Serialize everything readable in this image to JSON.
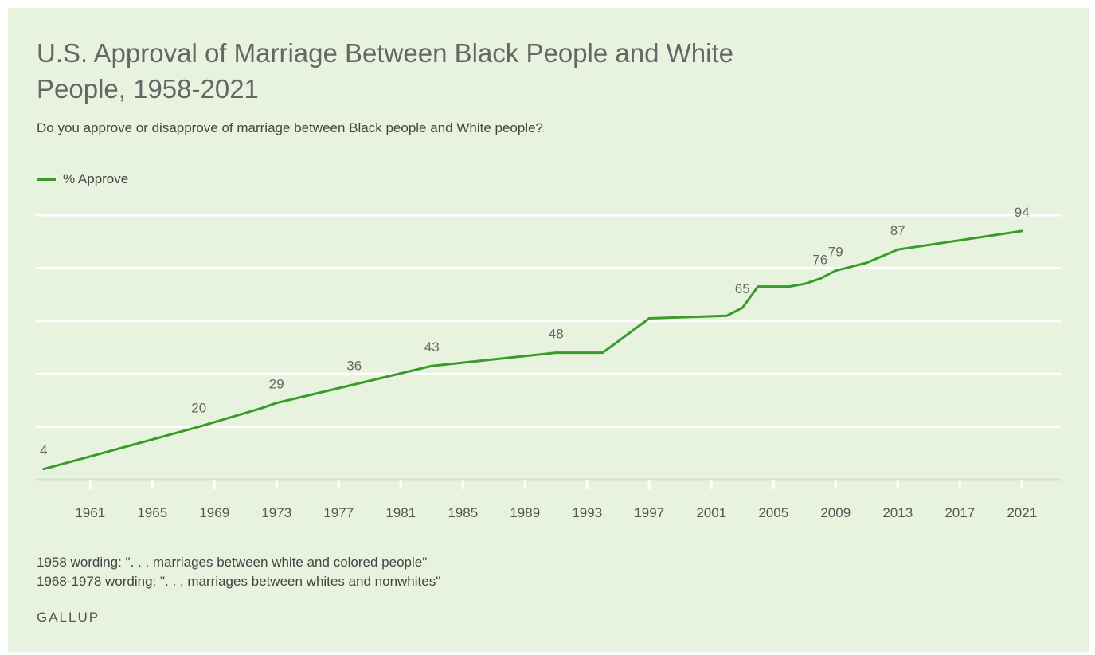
{
  "title": "U.S. Approval of Marriage Between Black People and White People, 1958-2021",
  "subtitle": "Do you approve or disapprove of marriage between Black people and White people?",
  "legend": {
    "label": "% Approve"
  },
  "notes": [
    "1958 wording: \". . . marriages between white and colored people\"",
    "1968-1978 wording: \". . . marriages between whites and nonwhites\""
  ],
  "source": "GALLUP",
  "colors": {
    "background": "#e8f3df",
    "line": "#3a9a2a",
    "grid": "#ffffff",
    "text": "#555555"
  },
  "chart_data": {
    "type": "line",
    "xlabel": "",
    "ylabel": "",
    "xlim": [
      1957.5,
      2023.5
    ],
    "ylim": [
      0,
      100
    ],
    "y_gridlines": [
      0,
      20,
      40,
      60,
      80,
      100
    ],
    "grid": true,
    "legend_position": "top-left",
    "x_ticks": [
      1961,
      1965,
      1969,
      1973,
      1977,
      1981,
      1985,
      1989,
      1993,
      1997,
      2001,
      2005,
      2009,
      2013,
      2017,
      2021
    ],
    "series": [
      {
        "name": "% Approve",
        "points": [
          {
            "x": 1958,
            "y": 4,
            "label": "4"
          },
          {
            "x": 1968,
            "y": 20,
            "label": "20"
          },
          {
            "x": 1972,
            "y": 27
          },
          {
            "x": 1973,
            "y": 29,
            "label": "29"
          },
          {
            "x": 1978,
            "y": 36,
            "label": "36"
          },
          {
            "x": 1983,
            "y": 43,
            "label": "43"
          },
          {
            "x": 1991,
            "y": 48,
            "label": "48"
          },
          {
            "x": 1994,
            "y": 48
          },
          {
            "x": 1997,
            "y": 61
          },
          {
            "x": 2002,
            "y": 62
          },
          {
            "x": 2003,
            "y": 65,
            "label": "65"
          },
          {
            "x": 2004,
            "y": 73
          },
          {
            "x": 2006,
            "y": 73
          },
          {
            "x": 2007,
            "y": 74
          },
          {
            "x": 2008,
            "y": 76,
            "label": "76"
          },
          {
            "x": 2009,
            "y": 79,
            "label": "79"
          },
          {
            "x": 2011,
            "y": 82
          },
          {
            "x": 2013,
            "y": 87,
            "label": "87"
          },
          {
            "x": 2021,
            "y": 94,
            "label": "94"
          }
        ]
      }
    ]
  }
}
